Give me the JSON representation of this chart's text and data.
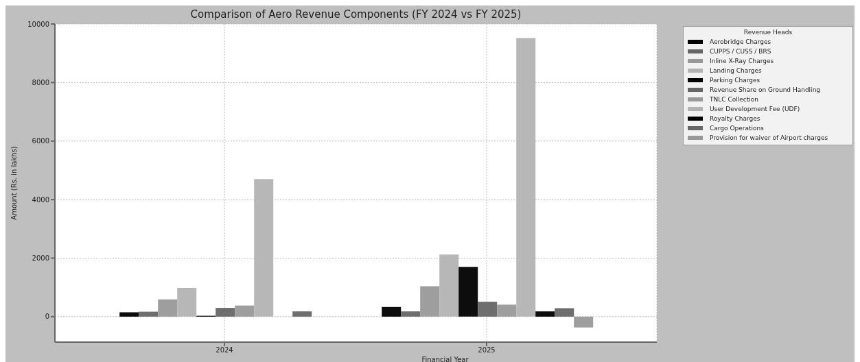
{
  "chart_data": {
    "type": "bar",
    "title": "Comparison of Aero Revenue Components (FY 2024 vs FY 2025)",
    "xlabel": "Financial Year",
    "ylabel": "Amount (Rs. in lakhs)",
    "legend_title": "Revenue Heads",
    "categories": [
      "2024",
      "2025"
    ],
    "series": [
      {
        "name": "Aerobridge Charges",
        "color": "#000000",
        "values": [
          150,
          330
        ]
      },
      {
        "name": "CUPPS / CUSS / BRS",
        "color": "#666666",
        "values": [
          170,
          180
        ]
      },
      {
        "name": "Inline X-Ray Charges",
        "color": "#999999",
        "values": [
          590,
          1040
        ]
      },
      {
        "name": "Landing Charges",
        "color": "#b3b3b3",
        "values": [
          980,
          2120
        ]
      },
      {
        "name": "Parking Charges",
        "color": "#000000",
        "values": [
          30,
          1700
        ]
      },
      {
        "name": "Revenue Share on Ground Handling",
        "color": "#666666",
        "values": [
          300,
          510
        ]
      },
      {
        "name": "TNLC Collection",
        "color": "#999999",
        "values": [
          380,
          410
        ]
      },
      {
        "name": "User Development Fee (UDF)",
        "color": "#b3b3b3",
        "values": [
          4700,
          9520
        ]
      },
      {
        "name": "Royalty Charges",
        "color": "#000000",
        "values": [
          0,
          180
        ]
      },
      {
        "name": "Cargo Operations",
        "color": "#666666",
        "values": [
          180,
          290
        ]
      },
      {
        "name": "Provision for waiver of Airport charges",
        "color": "#999999",
        "values": [
          0,
          -370
        ]
      }
    ],
    "ylim": [
      -870,
      10000
    ],
    "yticks": [
      0,
      2000,
      4000,
      6000,
      8000,
      10000
    ],
    "grid": true,
    "legend": "top right"
  }
}
